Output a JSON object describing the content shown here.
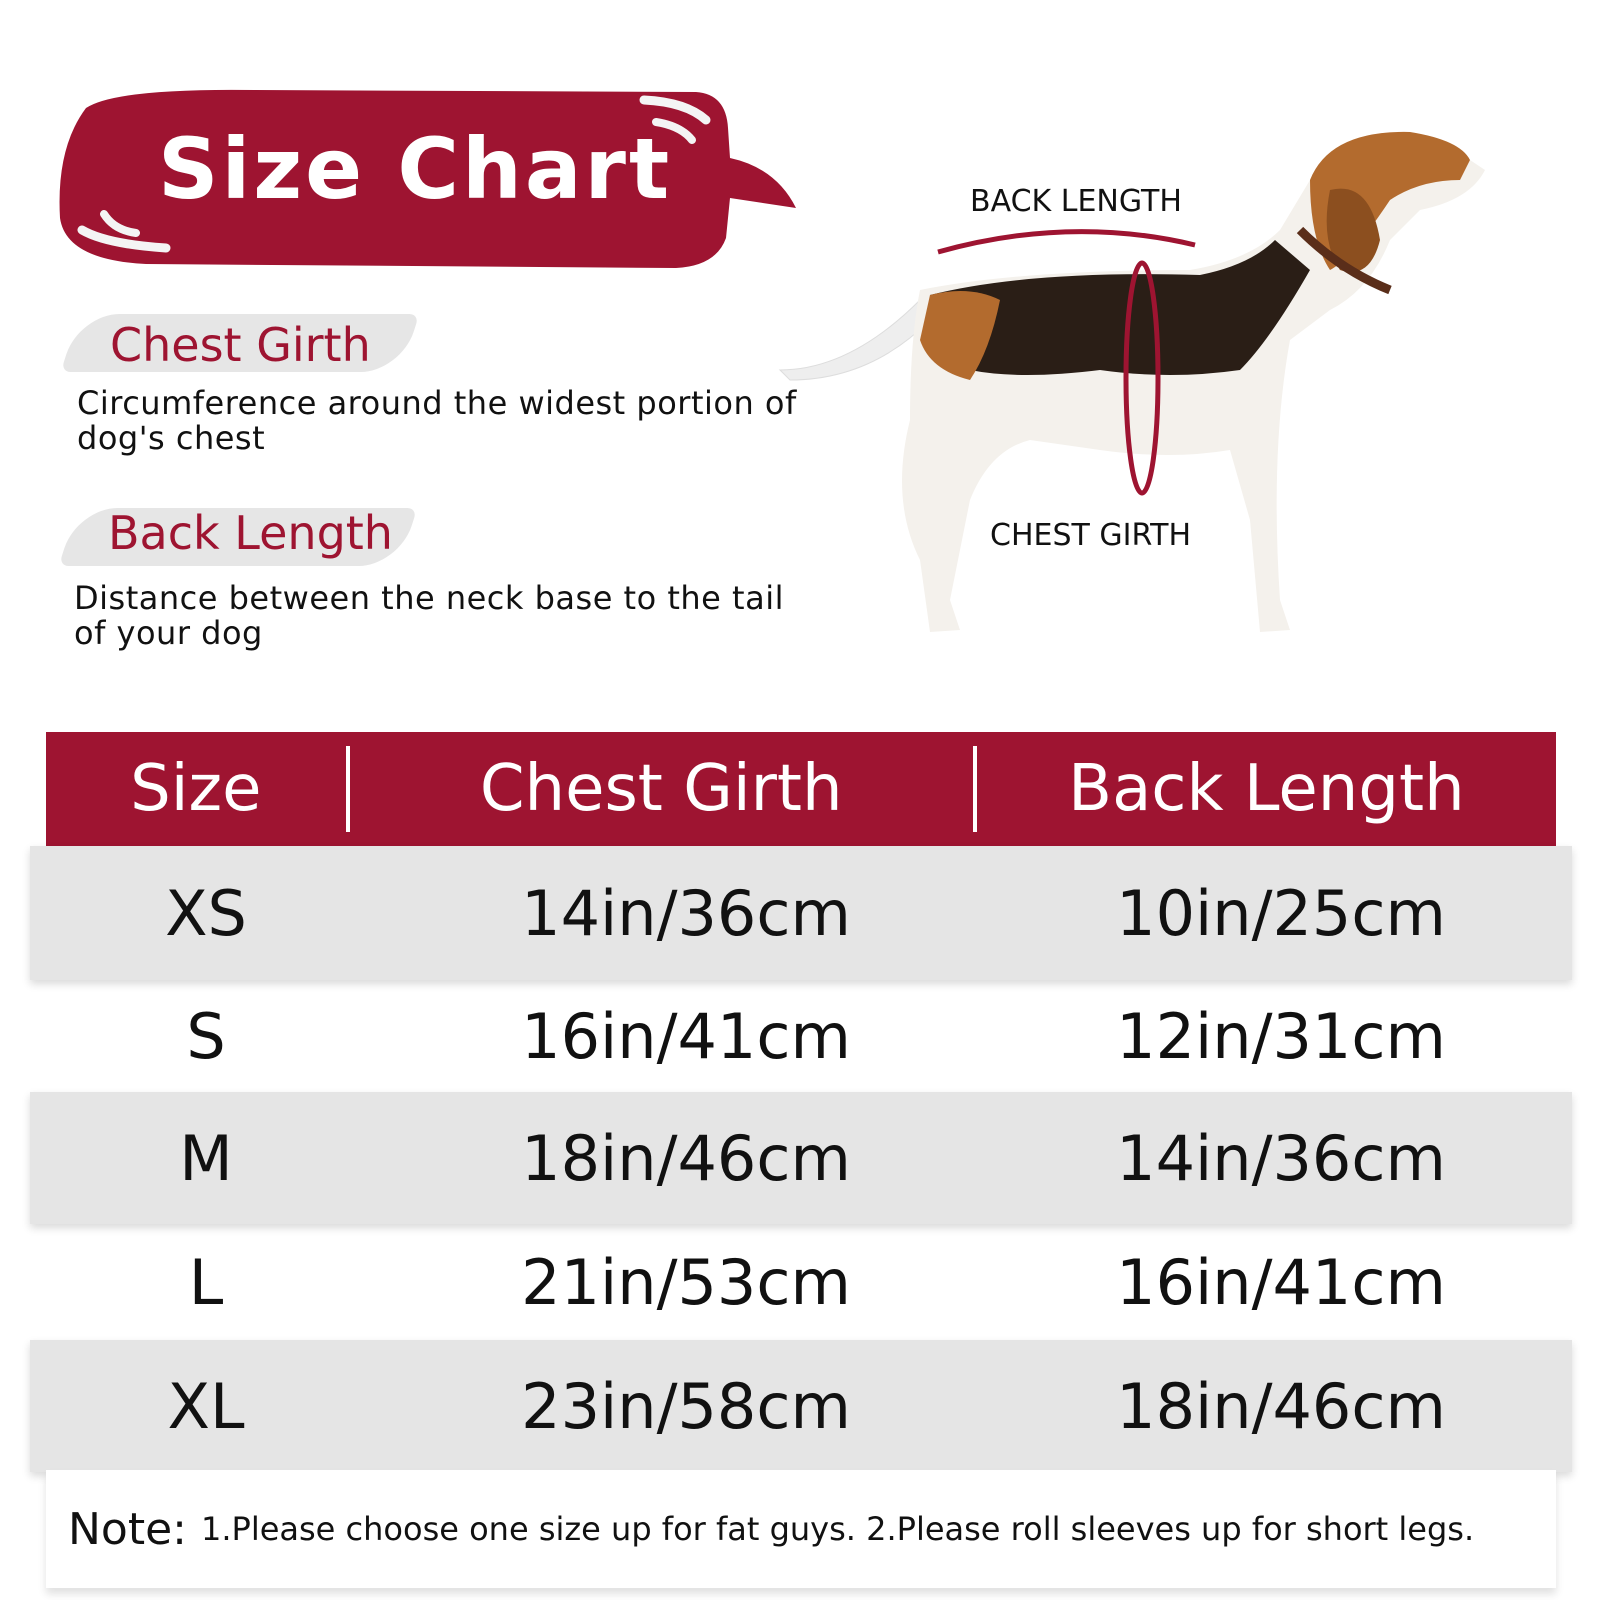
{
  "title": "Size Chart",
  "brand_color": "#9e1431",
  "sections": [
    {
      "title": "Chest Girth",
      "description": "Circumference around the widest portion of dog's chest"
    },
    {
      "title": "Back Length",
      "description": "Distance between the neck base to the tail of your dog"
    }
  ],
  "diagram": {
    "back_label": "BACK LENGTH",
    "chest_label": "CHEST GIRTH"
  },
  "table": {
    "headers": [
      "Size",
      "Chest Girth",
      "Back Length"
    ],
    "rows": [
      [
        "XS",
        "14in/36cm",
        "10in/25cm"
      ],
      [
        "S",
        "16in/41cm",
        "12in/31cm"
      ],
      [
        "M",
        "18in/46cm",
        "14in/36cm"
      ],
      [
        "L",
        "21in/53cm",
        "16in/41cm"
      ],
      [
        "XL",
        "23in/58cm",
        "18in/46cm"
      ]
    ]
  },
  "note": {
    "label": "Note:",
    "text": "1.Please choose one size up for fat guys. 2.Please roll sleeves up for short legs."
  }
}
